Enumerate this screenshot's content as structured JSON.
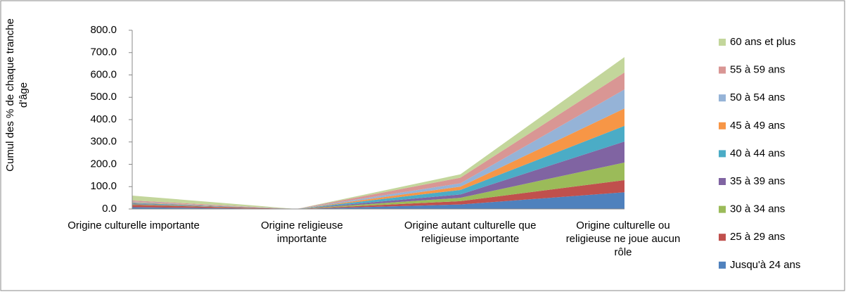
{
  "chart_data": {
    "type": "stacked_area",
    "y_axis_label": "Cumul des % de chaque tranche d'âge",
    "categories": [
      "Origine culturelle importante",
      "Origine religieuse importante",
      "Origine autant culturelle que religieuse importante",
      "Origine culturelle ou religieuse ne joue aucun rôle"
    ],
    "ylim": [
      0,
      800
    ],
    "yticks": [
      {
        "value": 0,
        "label": "0.0"
      },
      {
        "value": 100,
        "label": "100.0"
      },
      {
        "value": 200,
        "label": "200.0"
      },
      {
        "value": 300,
        "label": "300.0"
      },
      {
        "value": 400,
        "label": "400.0"
      },
      {
        "value": 500,
        "label": "500.0"
      },
      {
        "value": 600,
        "label": "600.0"
      },
      {
        "value": 700,
        "label": "700.0"
      },
      {
        "value": 800,
        "label": "800.0"
      }
    ],
    "legend": "right",
    "series": [
      {
        "name": "Jusqu'à 24 ans",
        "color": "#4f81bd",
        "values": [
          8,
          0,
          20,
          75
        ]
      },
      {
        "name": "25 à 29 ans",
        "color": "#c0504d",
        "values": [
          10,
          0,
          15,
          54
        ]
      },
      {
        "name": "30 à 34 ans",
        "color": "#9bbb59",
        "values": [
          3,
          0,
          15,
          79
        ]
      },
      {
        "name": "35 à 39 ans",
        "color": "#8064a2",
        "values": [
          3,
          0,
          15,
          94
        ]
      },
      {
        "name": "40 à 44 ans",
        "color": "#4bacc6",
        "values": [
          3,
          0,
          20,
          70
        ]
      },
      {
        "name": "45 à 49 ans",
        "color": "#f79646",
        "values": [
          3,
          0,
          15,
          78
        ]
      },
      {
        "name": "50 à 54 ans",
        "color": "#95b3d7",
        "values": [
          3,
          0,
          15,
          85
        ]
      },
      {
        "name": "55 à 59 ans",
        "color": "#d99694",
        "values": [
          5,
          0,
          25,
          76
        ]
      },
      {
        "name": "60 ans et plus",
        "color": "#c3d69b",
        "values": [
          22,
          0,
          15,
          69
        ]
      }
    ]
  }
}
